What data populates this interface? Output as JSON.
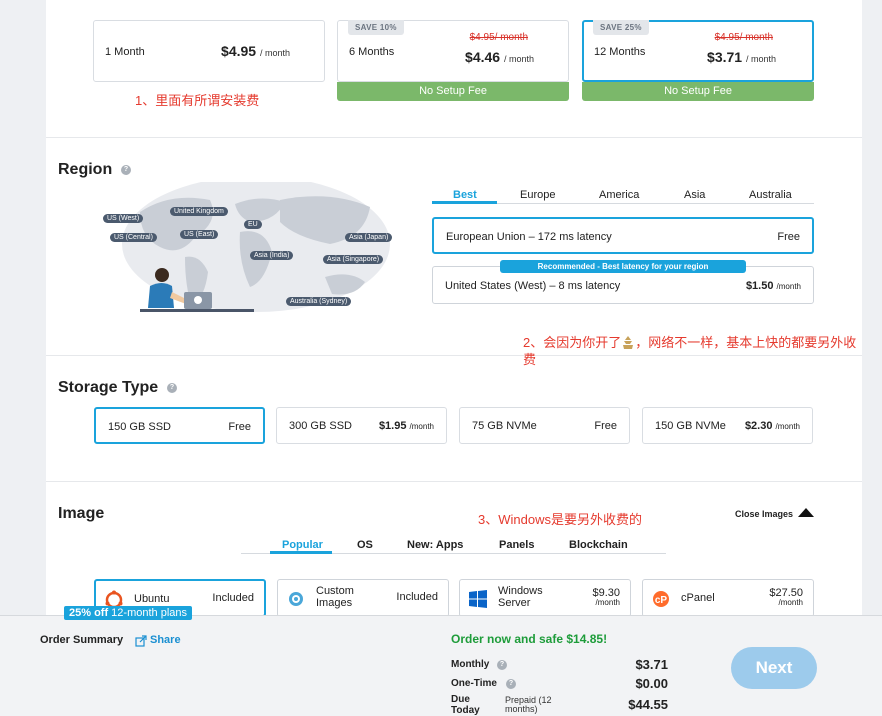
{
  "terms": [
    {
      "label": "1 Month",
      "price": "$4.95",
      "per": "/ month"
    },
    {
      "label": "6 Months",
      "price": "$4.46",
      "per": "/ month",
      "old_price": "$4.95/ month",
      "save": "SAVE 10%",
      "setup": "No Setup Fee"
    },
    {
      "label": "12 Months",
      "price": "$3.71",
      "per": "/ month",
      "old_price": "$4.95/ month",
      "save": "SAVE 25%",
      "setup": "No Setup Fee"
    }
  ],
  "notes": {
    "n1": "1、里面有所谓安装费",
    "n2a": "2、会因为你开了",
    "n2b": "，网络不一样，基本上快的都要另外收",
    "n2c": "费",
    "n3": "3、Windows是要另外收费的"
  },
  "region": {
    "title": "Region",
    "help": "?",
    "tabs": [
      "Best",
      "Europe",
      "America",
      "Asia",
      "Australia"
    ],
    "map_labels": [
      "US (West)",
      "United Kingdom",
      "EU",
      "US (Central)",
      "US (East)",
      "Asia (Japan)",
      "Asia (India)",
      "Asia (Singapore)",
      "Australia (Sydney)"
    ],
    "options": [
      {
        "name": "European Union",
        "latency": "172",
        "latency_unit": "ms latency",
        "price": "Free"
      },
      {
        "name": "United States (West)",
        "latency": "8",
        "latency_unit": "ms latency",
        "price": "$1.50",
        "per": "/month"
      }
    ],
    "dash": "–",
    "recommended": "Recommended - Best latency for your region"
  },
  "storage": {
    "title": "Storage Type",
    "help": "?",
    "options": [
      {
        "name": "150 GB SSD",
        "price": "Free"
      },
      {
        "name": "300 GB SSD",
        "price": "$1.95",
        "per": "/month"
      },
      {
        "name": "75 GB NVMe",
        "price": "Free"
      },
      {
        "name": "150 GB NVMe",
        "price": "$2.30",
        "per": "/month"
      }
    ]
  },
  "image": {
    "title": "Image",
    "close_label": "Close Images",
    "tabs": [
      "Popular",
      "OS",
      "New: Apps",
      "Panels",
      "Blockchain"
    ],
    "options": [
      {
        "name": "Ubuntu",
        "price": "Included"
      },
      {
        "name_l1": "Custom",
        "name_l2": "Images",
        "price": "Included"
      },
      {
        "name_l1": "Windows",
        "name_l2": "Server",
        "price": "$9.30",
        "per": "/month"
      },
      {
        "name": "cPanel",
        "price": "$27.50",
        "per": "/month"
      }
    ]
  },
  "order": {
    "promo_bold": "25% off",
    "promo_rest": " 12-month plans",
    "title": "Order Summary",
    "share": "Share",
    "save_line": "Order now and safe $14.85!",
    "monthly_label": "Monthly",
    "monthly_value": "$3.71",
    "onetime_label": "One-Time",
    "onetime_value": "$0.00",
    "due_l1": "Due",
    "due_l2": "Today",
    "prepaid_l1": "Prepaid (12",
    "prepaid_l2": "months)",
    "due_value": "$44.55",
    "next": "Next"
  },
  "colors": {
    "accent": "#1aa3dc",
    "setup_green": "#7bb86a",
    "note_red": "#e53a2e",
    "save_green": "#1e9c3a"
  }
}
